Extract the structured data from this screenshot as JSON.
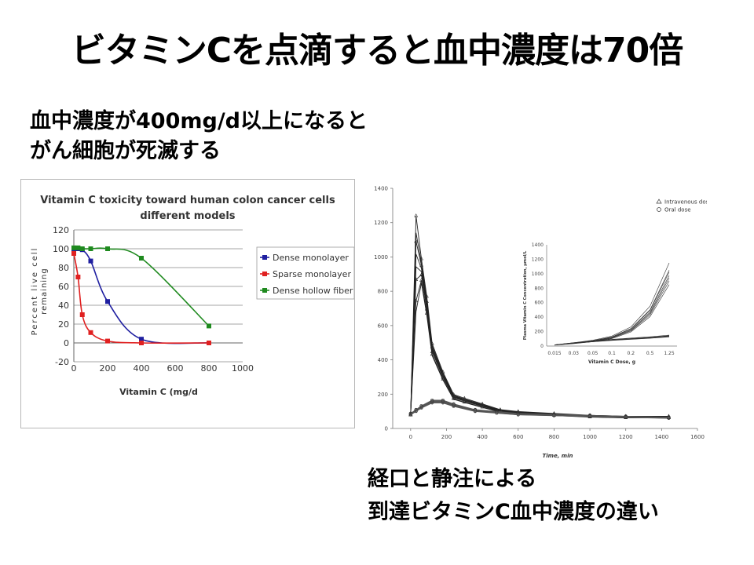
{
  "slide": {
    "title": "ビタミンCを点滴すると血中濃度は70倍",
    "subhead_line1": "血中濃度が400mg/d以上になると",
    "subhead_line2": "がん細胞が死滅する",
    "caption_line1": "経口と静注による",
    "caption_line2": "到達ビタミンC血中濃度の違い"
  },
  "chart_data": [
    {
      "type": "line",
      "title_line1": "Vitamin C toxicity toward human colon cancer cells",
      "title_line2": "different models",
      "xlabel": "Vitamin C (mg/d",
      "ylabel_line1": "Percent live cell",
      "ylabel_line2": "remaining",
      "xlim": [
        0,
        1000
      ],
      "ylim": [
        -20,
        120
      ],
      "x_ticks": [
        "0",
        "200",
        "400",
        "600",
        "800",
        "1000"
      ],
      "y_ticks": [
        "120",
        "100",
        "80",
        "60",
        "40",
        "20",
        "0",
        "-20"
      ],
      "grid": true,
      "legend_position": "right",
      "series": [
        {
          "name": "Dense monolayer",
          "color": "#1f1fa0",
          "points": [
            [
              0,
              100
            ],
            [
              25,
              100
            ],
            [
              50,
              99
            ],
            [
              100,
              87
            ],
            [
              200,
              44
            ],
            [
              400,
              4
            ],
            [
              800,
              0
            ]
          ]
        },
        {
          "name": "Sparse monolayer",
          "color": "#e02020",
          "points": [
            [
              0,
              95
            ],
            [
              25,
              70
            ],
            [
              50,
              30
            ],
            [
              100,
              11
            ],
            [
              200,
              2
            ],
            [
              400,
              0
            ],
            [
              800,
              0
            ]
          ]
        },
        {
          "name": "Dense hollow fiber",
          "color": "#1f8a1f",
          "points": [
            [
              0,
              101
            ],
            [
              25,
              101
            ],
            [
              50,
              100
            ],
            [
              100,
              100
            ],
            [
              200,
              100
            ],
            [
              400,
              90
            ],
            [
              800,
              18
            ]
          ]
        }
      ]
    },
    {
      "type": "line",
      "xlabel": "Time, min",
      "ylabel": "",
      "xlim": [
        -100,
        1600
      ],
      "ylim": [
        0,
        1400
      ],
      "x_ticks": [
        "0",
        "200",
        "400",
        "600",
        "800",
        "1000",
        "1200",
        "1400",
        "1600"
      ],
      "y_ticks": [
        "0",
        "200",
        "400",
        "600",
        "800",
        "1000",
        "1200",
        "1400"
      ],
      "legend": [
        "Intravenous dose",
        "Oral dose"
      ],
      "legend_position": "top-right",
      "series": [
        {
          "name": "Intravenous dose",
          "points": [
            [
              0,
              80
            ],
            [
              30,
              1240
            ],
            [
              60,
              900
            ],
            [
              90,
              700
            ],
            [
              120,
              450
            ],
            [
              180,
              300
            ],
            [
              240,
              180
            ],
            [
              300,
              160
            ],
            [
              400,
              130
            ],
            [
              500,
              100
            ],
            [
              600,
              90
            ],
            [
              800,
              80
            ],
            [
              1000,
              70
            ],
            [
              1200,
              65
            ],
            [
              1440,
              65
            ]
          ]
        },
        {
          "name": "Oral dose",
          "points": [
            [
              0,
              80
            ],
            [
              30,
              100
            ],
            [
              60,
              120
            ],
            [
              120,
              150
            ],
            [
              180,
              150
            ],
            [
              240,
              130
            ],
            [
              360,
              100
            ],
            [
              480,
              90
            ],
            [
              600,
              80
            ],
            [
              800,
              75
            ],
            [
              1000,
              70
            ],
            [
              1200,
              65
            ],
            [
              1440,
              60
            ]
          ]
        }
      ],
      "inset": {
        "ylabel": "Plasma Vitamin C Concentration, μmol/L",
        "xlabel": "Vitamin C Dose, g",
        "x_ticks": [
          "0.015",
          "0.03",
          "0.05",
          "0.1",
          "0.2",
          "0.5",
          "1.25"
        ],
        "y_ticks": [
          "0",
          "200",
          "400",
          "600",
          "800",
          "1000",
          "1200",
          "1400"
        ],
        "ylim": [
          0,
          1400
        ],
        "series": [
          {
            "name": "Intravenous dose",
            "values": [
              15,
              40,
              70,
              120,
              230,
              480,
              1000
            ]
          },
          {
            "name": "Oral dose",
            "values": [
              15,
              40,
              60,
              80,
              95,
              110,
              130
            ]
          }
        ]
      }
    }
  ]
}
